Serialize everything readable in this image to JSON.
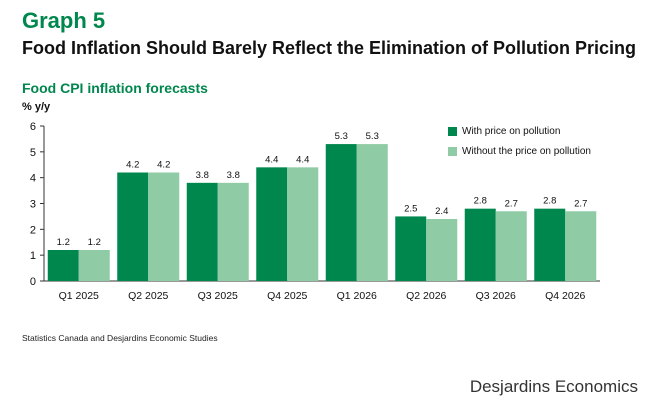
{
  "header": {
    "graph_label": "Graph 5",
    "title": "Food Inflation Should Barely Reflect the Elimination of Pollution Pricing"
  },
  "chart_data": {
    "type": "bar",
    "title": "Food CPI inflation forecasts",
    "ylabel": "% y/y",
    "xlabel": "",
    "ylim": [
      0,
      6
    ],
    "yticks": [
      0,
      1,
      2,
      3,
      4,
      5,
      6
    ],
    "grid": false,
    "legend_position": "top-right",
    "categories": [
      "Q1 2025",
      "Q2 2025",
      "Q3 2025",
      "Q4 2025",
      "Q1 2026",
      "Q2 2026",
      "Q3 2026",
      "Q4 2026"
    ],
    "series": [
      {
        "name": "With price on pollution",
        "color": "#00874e",
        "values": [
          1.2,
          4.2,
          3.8,
          4.4,
          5.3,
          2.5,
          2.8,
          2.8
        ]
      },
      {
        "name": "Without the price on pollution",
        "color": "#8fcca6",
        "values": [
          1.2,
          4.2,
          3.8,
          4.4,
          5.3,
          2.4,
          2.7,
          2.7
        ]
      }
    ]
  },
  "footer": {
    "source": "Statistics Canada and Desjardins Economic Studies",
    "brand": "Desjardins Economics"
  }
}
